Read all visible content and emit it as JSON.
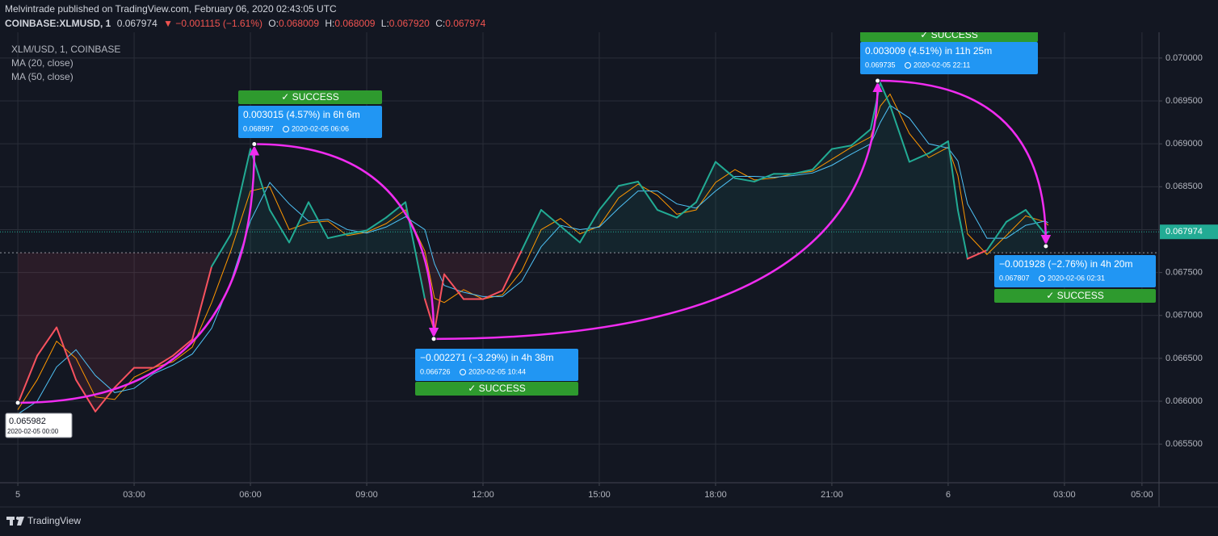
{
  "header": {
    "title": "Melvintrade published on TradingView.com, February 06, 2020 02:43:05 UTC",
    "symbol": "COINBASE:XLMUSD, 1",
    "last": "0.067974",
    "change": "▼ −0.001115 (−1.61%)",
    "ohlc": [
      {
        "label": "O:",
        "value": "0.068009"
      },
      {
        "label": "H:",
        "value": "0.068009"
      },
      {
        "label": "L:",
        "value": "0.067920"
      },
      {
        "label": "C:",
        "value": "0.067974"
      }
    ]
  },
  "footer": {
    "brand": "TradingView"
  },
  "chart_data": {
    "type": "line",
    "x": [
      0,
      0.5,
      1,
      1.5,
      2,
      2.5,
      3,
      3.5,
      4,
      4.5,
      5,
      5.5,
      6,
      6.5,
      7,
      7.5,
      8,
      8.5,
      9,
      9.5,
      10,
      10.5,
      10.75,
      11,
      11.5,
      12,
      12.5,
      13,
      13.5,
      14,
      14.5,
      15,
      15.5,
      16,
      16.5,
      17,
      17.5,
      18,
      18.5,
      19,
      19.5,
      20,
      20.5,
      21,
      21.5,
      22,
      22.25,
      22.5,
      23,
      23.5,
      24,
      24.25,
      24.5,
      25,
      25.5,
      26,
      26.5,
      26.58
    ],
    "series": [
      {
        "name": "XLM/USD, 1, COINBASE",
        "color": "#22ab94",
        "color_below": "#f7525f",
        "values": [
          0.06597,
          0.06653,
          0.06686,
          0.06625,
          0.06588,
          0.06616,
          0.06639,
          0.06639,
          0.06653,
          0.06672,
          0.06757,
          0.06795,
          0.06894,
          0.06823,
          0.06785,
          0.06832,
          0.0679,
          0.06795,
          0.06799,
          0.06814,
          0.06832,
          0.06719,
          0.06682,
          0.06748,
          0.06719,
          0.06719,
          0.06729,
          0.06776,
          0.06823,
          0.06804,
          0.06785,
          0.06823,
          0.06851,
          0.06856,
          0.06823,
          0.06814,
          0.06832,
          0.06879,
          0.0686,
          0.06856,
          0.06865,
          0.06865,
          0.0687,
          0.06894,
          0.06898,
          0.06917,
          0.06971,
          0.06945,
          0.06879,
          0.06889,
          0.06903,
          0.06823,
          0.06766,
          0.06776,
          0.06809,
          0.06823,
          0.06795,
          0.067974
        ]
      },
      {
        "name": "MA (20, close)",
        "color": "#ff9800",
        "values": [
          0.0659,
          0.06625,
          0.0667,
          0.0665,
          0.06605,
          0.06602,
          0.06628,
          0.06639,
          0.06646,
          0.06663,
          0.06715,
          0.06776,
          0.06845,
          0.0685,
          0.068,
          0.06808,
          0.0681,
          0.06793,
          0.06797,
          0.06807,
          0.06823,
          0.06775,
          0.0672,
          0.06715,
          0.0673,
          0.06719,
          0.06724,
          0.06752,
          0.068,
          0.06813,
          0.06795,
          0.06804,
          0.06837,
          0.06853,
          0.0684,
          0.06818,
          0.06823,
          0.06855,
          0.0687,
          0.06858,
          0.0686,
          0.06865,
          0.06868,
          0.06882,
          0.06896,
          0.06908,
          0.06944,
          0.06958,
          0.06912,
          0.06884,
          0.06896,
          0.06863,
          0.06795,
          0.06771,
          0.06793,
          0.06816,
          0.06809,
          0.06805
        ]
      },
      {
        "name": "MA (50, close)",
        "color": "#4fc3f7",
        "values": [
          0.06585,
          0.066,
          0.0664,
          0.0666,
          0.0663,
          0.0661,
          0.06615,
          0.06632,
          0.06642,
          0.06655,
          0.06685,
          0.0674,
          0.0681,
          0.06855,
          0.0683,
          0.0681,
          0.06812,
          0.068,
          0.06796,
          0.06803,
          0.06815,
          0.068,
          0.0676,
          0.06735,
          0.06727,
          0.06722,
          0.06722,
          0.0674,
          0.0678,
          0.06805,
          0.068,
          0.06803,
          0.06825,
          0.06845,
          0.06845,
          0.0683,
          0.06825,
          0.06845,
          0.06862,
          0.06862,
          0.06861,
          0.06863,
          0.06866,
          0.06875,
          0.06888,
          0.069,
          0.06925,
          0.06945,
          0.0693,
          0.069,
          0.06895,
          0.0688,
          0.0683,
          0.0679,
          0.0679,
          0.06805,
          0.0681,
          0.06808
        ]
      }
    ],
    "baseline": 0.06773,
    "last_price": 0.067974,
    "xlim": [
      -0.46,
      29.44
    ],
    "ylim": [
      0.06505,
      0.0703
    ],
    "xticks": [
      {
        "value": 0,
        "label": "5"
      },
      {
        "value": 3,
        "label": "03:00"
      },
      {
        "value": 6,
        "label": "06:00"
      },
      {
        "value": 9,
        "label": "09:00"
      },
      {
        "value": 12,
        "label": "12:00"
      },
      {
        "value": 15,
        "label": "15:00"
      },
      {
        "value": 18,
        "label": "18:00"
      },
      {
        "value": 21,
        "label": "21:00"
      },
      {
        "value": 24,
        "label": "6"
      },
      {
        "value": 27,
        "label": "03:00"
      },
      {
        "value": 29,
        "label": "05:00"
      }
    ],
    "yticks": [
      {
        "value": 0.0655,
        "label": "0.065500"
      },
      {
        "value": 0.066,
        "label": "0.066000"
      },
      {
        "value": 0.0665,
        "label": "0.066500"
      },
      {
        "value": 0.067,
        "label": "0.067000"
      },
      {
        "value": 0.0675,
        "label": "0.067500"
      },
      {
        "value": 0.068,
        "label": "0.068000"
      },
      {
        "value": 0.0685,
        "label": "0.068500"
      },
      {
        "value": 0.069,
        "label": "0.069000"
      },
      {
        "value": 0.0695,
        "label": "0.069500"
      },
      {
        "value": 0.07,
        "label": "0.070000"
      }
    ],
    "grid": true,
    "measure_color": "#f02cf0",
    "measure_points": [
      {
        "x": 0,
        "y": 0.065982,
        "date": "2020-02-05 00:00"
      },
      {
        "x": 6.1,
        "y": 0.068997,
        "date": "2020-02-05  06:06",
        "text": "0.003015 (4.57%) in 6h 6m",
        "status": "✓ SUCCESS"
      },
      {
        "x": 10.73,
        "y": 0.066726,
        "date": "2020-02-05  10:44",
        "text": "−0.002271 (−3.29%) in 4h 38m",
        "status": "✓ SUCCESS"
      },
      {
        "x": 22.18,
        "y": 0.069735,
        "date": "2020-02-05  22:11",
        "text": "0.003009 (4.51%) in 11h 25m",
        "status": "✓ SUCCESS"
      },
      {
        "x": 26.52,
        "y": 0.067807,
        "date": "2020-02-06  02:31",
        "text": "−0.001928 (−2.76%) in 4h 20m",
        "status": "✓ SUCCESS"
      }
    ]
  }
}
